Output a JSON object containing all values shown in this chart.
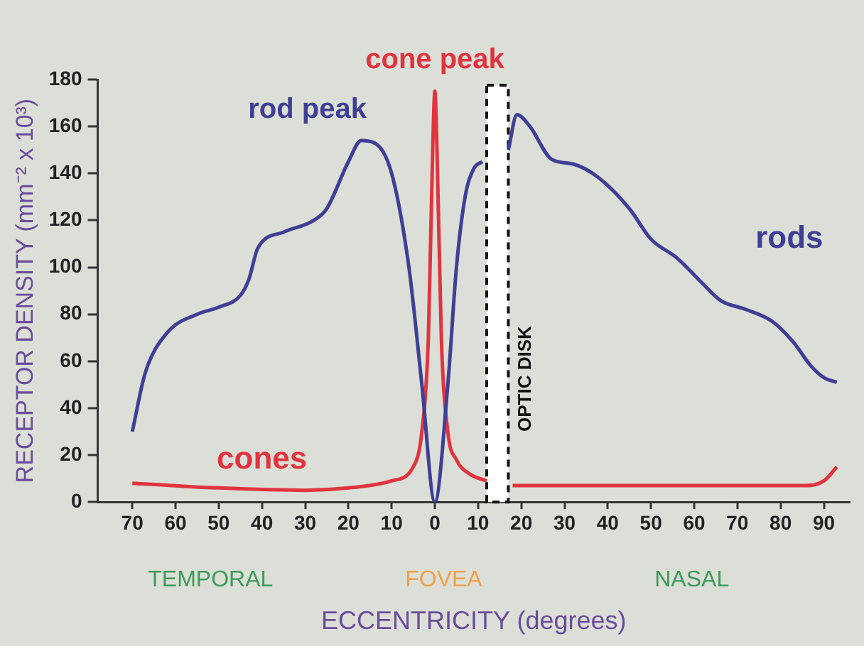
{
  "chart_data": {
    "type": "line",
    "xlabel": "ECCENTRICITY (degrees)",
    "ylabel": "RECEPTOR DENSITY (mm⁻² x 10³)",
    "xlim": [
      -78,
      96
    ],
    "ylim": [
      0,
      180
    ],
    "xticks": [
      {
        "value": -70,
        "label": "70"
      },
      {
        "value": -60,
        "label": "60"
      },
      {
        "value": -50,
        "label": "50"
      },
      {
        "value": -40,
        "label": "40"
      },
      {
        "value": -30,
        "label": "30"
      },
      {
        "value": -20,
        "label": "20"
      },
      {
        "value": -10,
        "label": "10"
      },
      0,
      10,
      20,
      30,
      40,
      50,
      60,
      70,
      80,
      90
    ],
    "yticks": [
      0,
      20,
      40,
      60,
      80,
      100,
      120,
      140,
      160,
      180
    ],
    "grid": false,
    "legend": false,
    "marker": "none",
    "line_style": "solid",
    "series": [
      {
        "name": "rods",
        "color": "#3f3f95",
        "x": [
          -70,
          -67,
          -62,
          -55,
          -50,
          -45,
          -43,
          -41,
          -35,
          -28,
          -25,
          -20,
          -17,
          -14,
          -10,
          -6,
          -3,
          0,
          3,
          5,
          7,
          9,
          11,
          14,
          17,
          19,
          22,
          27,
          32,
          38,
          45,
          50,
          56,
          62,
          66,
          72,
          78,
          83,
          87,
          90,
          93
        ],
        "values": [
          30,
          55,
          72,
          80,
          83,
          88,
          95,
          108,
          115,
          120,
          125,
          145,
          154,
          153,
          140,
          100,
          50,
          0,
          50,
          100,
          130,
          142,
          145,
          null,
          150,
          165,
          160,
          146,
          144,
          138,
          125,
          112,
          104,
          93,
          86,
          82,
          77,
          68,
          58,
          53,
          51
        ]
      },
      {
        "name": "cones",
        "color": "#e0343f",
        "x": [
          -70,
          -50,
          -30,
          -20,
          -10,
          -5,
          -3,
          -1.5,
          -0.5,
          0,
          0.5,
          1.5,
          3,
          5,
          8,
          12,
          14,
          18,
          30,
          60,
          85,
          90,
          93
        ],
        "values": [
          8,
          6,
          5,
          6,
          9,
          15,
          30,
          70,
          150,
          175,
          150,
          70,
          30,
          18,
          12,
          9,
          null,
          7,
          7,
          7,
          7,
          9,
          15
        ]
      }
    ],
    "bands": [
      {
        "axis": "x",
        "from": 12,
        "to": 17,
        "label": "OPTIC DISK",
        "color": "#ffffff"
      }
    ],
    "annotations": [
      {
        "text": "cone peak",
        "x": 0,
        "y": 175
      },
      {
        "text": "rod peak",
        "x": -18,
        "y": 155
      },
      "TEMPORAL",
      "FOVEA",
      "NASAL"
    ]
  }
}
